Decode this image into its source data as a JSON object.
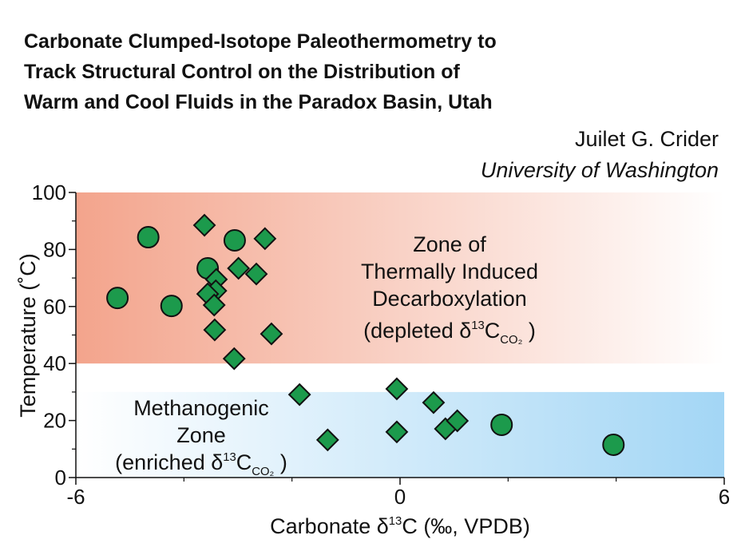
{
  "chart_data": {
    "type": "scatter",
    "title_lines": [
      "Carbonate Clumped-Isotope Paleothermometry to",
      "Track Structural Control on the Distribution of",
      "Warm and Cool Fluids in the Paradox Basin, Utah"
    ],
    "author": "Juilet G. Crider",
    "affiliation": "University of Washington",
    "xlabel": [
      "Carbonate δ",
      {
        "text": "13",
        "style": "sup"
      },
      "C (‰, VPDB)"
    ],
    "ylabel": "Temperature (˚C)",
    "xlim": [
      -6,
      6
    ],
    "xticks": [
      -6,
      0,
      6
    ],
    "xminorticks": [
      -4,
      -2,
      2,
      4
    ],
    "ylim": [
      0,
      100
    ],
    "yticks": [
      0,
      20,
      40,
      60,
      80,
      100
    ],
    "yminorticks": [
      10,
      30,
      50,
      70,
      90
    ],
    "bands": [
      {
        "ylim": [
          40,
          100
        ],
        "colors": [
          "#f3a48c",
          "#ffffff"
        ]
      },
      {
        "ylim": [
          0,
          30
        ],
        "colors": [
          "#ffffff",
          "#a3d6f5"
        ]
      }
    ],
    "annotations": [
      {
        "lines": [
          [
            "Zone of"
          ],
          [
            "Thermally Induced"
          ],
          [
            "Decarboxylation"
          ],
          [
            "(depleted  δ",
            {
              "text": "13",
              "style": "sup"
            },
            "C",
            {
              "text": "CO₂",
              "style": "sub"
            },
            " )"
          ]
        ]
      },
      {
        "lines": [
          [
            "Methanogenic"
          ],
          [
            "Zone"
          ],
          [
            "(enriched δ",
            {
              "text": "13",
              "style": "sup"
            },
            "C",
            {
              "text": "CO₂",
              "style": "sub"
            },
            " )"
          ]
        ]
      }
    ],
    "series": [
      {
        "marker": "circle",
        "color": "#1c9a4c",
        "x": [
          -5.23,
          -4.66,
          -4.23,
          -3.56,
          -3.06,
          1.88,
          3.95
        ],
        "values": [
          63.0,
          84.3,
          60.2,
          73.4,
          83.2,
          18.5,
          11.5
        ]
      },
      {
        "marker": "diamond",
        "color": "#1c9a4c",
        "x": [
          -3.62,
          -2.5,
          -2.99,
          -2.66,
          -3.4,
          -3.41,
          -3.56,
          -3.44,
          -3.43,
          -2.38,
          -3.07,
          -1.86,
          -1.34,
          -0.06,
          -0.06,
          0.62,
          0.84,
          1.06
        ],
        "values": [
          88.5,
          83.8,
          73.4,
          71.4,
          69.5,
          65.5,
          64.4,
          60.5,
          51.8,
          50.4,
          41.7,
          29.1,
          13.2,
          31.1,
          16.0,
          26.3,
          17.1,
          19.9
        ]
      }
    ]
  }
}
